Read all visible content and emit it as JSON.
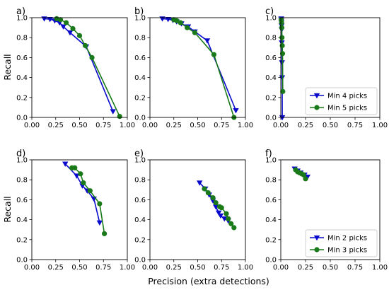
{
  "chart_data": {
    "type": "line",
    "xlabel": "Precision (extra detections)",
    "ylabel": "Recall",
    "xlim": [
      0,
      1
    ],
    "ylim": [
      0,
      1
    ],
    "xticks": [
      "0.00",
      "0.25",
      "0.50",
      "0.75",
      "1.00"
    ],
    "yticks": [
      "0.0",
      "0.2",
      "0.4",
      "0.6",
      "0.8",
      "1.0"
    ],
    "grid": false,
    "colors": {
      "blue": "#0a0acd",
      "green": "#1a7a1a"
    },
    "legends": [
      {
        "panel": "c",
        "placement": "lower-right",
        "entries": [
          "Min 4 picks",
          "Min 5 picks"
        ]
      },
      {
        "panel": "f",
        "placement": "lower-right",
        "entries": [
          "Min 2 picks",
          "Min 3 picks"
        ]
      }
    ],
    "panels": [
      {
        "label": "a)",
        "series": [
          {
            "name": "Min 4 picks",
            "marker": "triangle-down",
            "color": "#0a0acd",
            "x": [
              0.13,
              0.19,
              0.24,
              0.29,
              0.33,
              0.4,
              0.57,
              0.85
            ],
            "y": [
              0.99,
              0.985,
              0.97,
              0.95,
              0.91,
              0.85,
              0.71,
              0.06
            ]
          },
          {
            "name": "Min 5 picks",
            "marker": "circle",
            "color": "#1a7a1a",
            "x": [
              0.26,
              0.3,
              0.36,
              0.43,
              0.5,
              0.56,
              0.63,
              0.92
            ],
            "y": [
              0.99,
              0.98,
              0.95,
              0.89,
              0.82,
              0.72,
              0.6,
              0.01
            ]
          }
        ]
      },
      {
        "label": "b)",
        "series": [
          {
            "name": "Min 4 picks",
            "marker": "triangle-down",
            "color": "#0a0acd",
            "x": [
              0.13,
              0.19,
              0.24,
              0.28,
              0.33,
              0.4,
              0.47,
              0.6,
              0.9
            ],
            "y": [
              0.99,
              0.985,
              0.975,
              0.96,
              0.94,
              0.91,
              0.86,
              0.77,
              0.07
            ]
          },
          {
            "name": "Min 5 picks",
            "marker": "circle",
            "color": "#1a7a1a",
            "x": [
              0.25,
              0.28,
              0.32,
              0.39,
              0.47,
              0.67,
              0.88
            ],
            "y": [
              0.98,
              0.97,
              0.95,
              0.9,
              0.85,
              0.63,
              0.0
            ]
          }
        ]
      },
      {
        "label": "c)",
        "series": [
          {
            "name": "Min 4 picks",
            "marker": "triangle-down",
            "color": "#0a0acd",
            "x": [
              0.005,
              0.006,
              0.007,
              0.008,
              0.009,
              0.01,
              0.012,
              0.014,
              0.015
            ],
            "y": [
              0.99,
              0.97,
              0.95,
              0.92,
              0.88,
              0.75,
              0.55,
              0.4,
              0.0
            ]
          },
          {
            "name": "Min 5 picks",
            "marker": "circle",
            "color": "#1a7a1a",
            "x": [
              0.005,
              0.008,
              0.01,
              0.012,
              0.015,
              0.018,
              0.02
            ],
            "y": [
              0.98,
              0.95,
              0.9,
              0.8,
              0.72,
              0.64,
              0.26
            ]
          }
        ]
      },
      {
        "label": "d)",
        "series": [
          {
            "name": "Min 2 picks",
            "marker": "triangle-down",
            "color": "#0a0acd",
            "x": [
              0.35,
              0.47,
              0.53,
              0.58,
              0.65,
              0.71
            ],
            "y": [
              0.96,
              0.84,
              0.74,
              0.69,
              0.61,
              0.37
            ]
          },
          {
            "name": "Min 3 picks",
            "marker": "circle",
            "color": "#1a7a1a",
            "x": [
              0.42,
              0.45,
              0.51,
              0.54,
              0.61,
              0.71,
              0.76
            ],
            "y": [
              0.92,
              0.92,
              0.86,
              0.77,
              0.69,
              0.56,
              0.26
            ]
          }
        ]
      },
      {
        "label": "e)",
        "series": [
          {
            "name": "Min 2 picks",
            "marker": "triangle-down",
            "color": "#0a0acd",
            "x": [
              0.52,
              0.58,
              0.62,
              0.66,
              0.69,
              0.72,
              0.74,
              0.78,
              0.82
            ],
            "y": [
              0.77,
              0.71,
              0.65,
              0.59,
              0.53,
              0.47,
              0.44,
              0.41,
              0.39
            ]
          },
          {
            "name": "Min 3 picks",
            "marker": "circle",
            "color": "#1a7a1a",
            "x": [
              0.57,
              0.61,
              0.66,
              0.69,
              0.73,
              0.75,
              0.8,
              0.82,
              0.85,
              0.88
            ],
            "y": [
              0.71,
              0.67,
              0.62,
              0.57,
              0.53,
              0.52,
              0.46,
              0.41,
              0.36,
              0.32
            ]
          }
        ]
      },
      {
        "label": "f)",
        "series": [
          {
            "name": "Min 2 picks",
            "marker": "triangle-down",
            "color": "#0a0acd",
            "x": [
              0.14,
              0.17,
              0.2,
              0.24,
              0.27
            ],
            "y": [
              0.91,
              0.89,
              0.87,
              0.85,
              0.83
            ]
          },
          {
            "name": "Min 3 picks",
            "marker": "circle",
            "color": "#1a7a1a",
            "x": [
              0.15,
              0.17,
              0.19,
              0.21,
              0.23,
              0.25
            ],
            "y": [
              0.9,
              0.88,
              0.87,
              0.86,
              0.85,
              0.81
            ]
          }
        ]
      }
    ]
  }
}
